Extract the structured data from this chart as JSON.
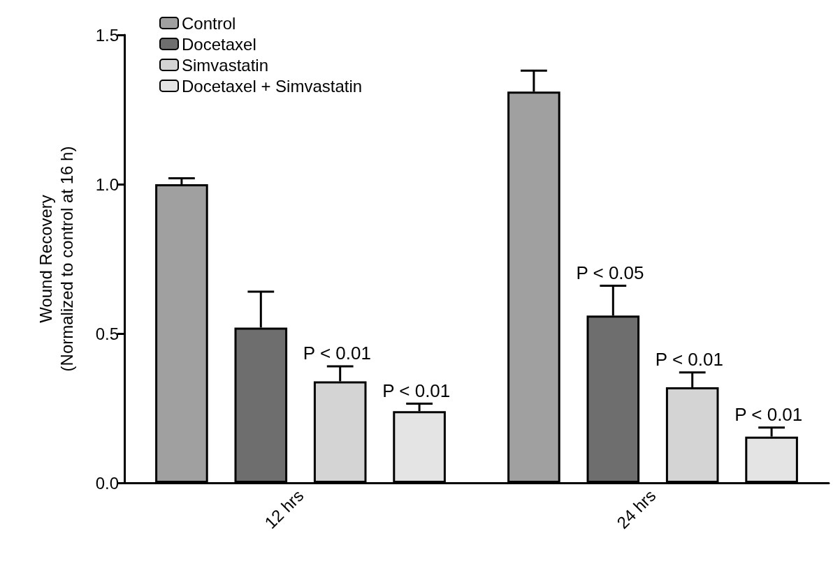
{
  "chart_data": {
    "type": "bar",
    "ylabel": "Wound Recovery\n(Normalized to control at 16 h)",
    "categories": [
      "12 hrs",
      "24 hrs"
    ],
    "series": [
      {
        "name": "Control",
        "color": "#a0a0a0",
        "values": [
          1.0,
          1.31
        ],
        "errors": [
          0.02,
          0.07
        ]
      },
      {
        "name": "Docetaxel",
        "color": "#6e6e6e",
        "values": [
          0.52,
          0.56
        ],
        "errors": [
          0.12,
          0.1
        ]
      },
      {
        "name": "Simvastatin",
        "color": "#d4d4d4",
        "values": [
          0.34,
          0.32
        ],
        "errors": [
          0.05,
          0.05
        ]
      },
      {
        "name": "Docetaxel + Simvastatin",
        "color": "#e4e4e4",
        "values": [
          0.24,
          0.155
        ],
        "errors": [
          0.025,
          0.03
        ]
      }
    ],
    "ylim": [
      0,
      1.5
    ],
    "yticks": [
      {
        "value": 0,
        "label": "0.0"
      },
      {
        "value": 0.5,
        "label": "0.5"
      },
      {
        "value": 1,
        "label": "1.0"
      },
      {
        "value": 1.5,
        "label": "1.5"
      }
    ],
    "grid": false,
    "legend": "top left",
    "annotations": [
      "P < 0.01",
      "P < 0.01",
      "P < 0.05",
      "P < 0.01",
      "P < 0.01"
    ]
  }
}
